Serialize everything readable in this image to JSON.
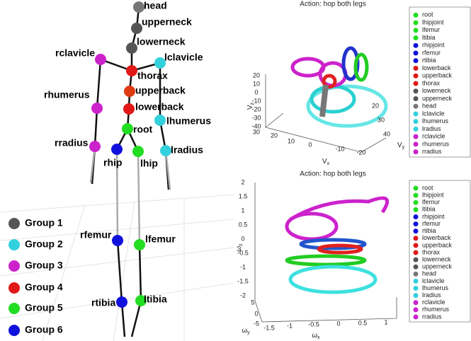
{
  "skeleton": {
    "joints": [
      "head",
      "upperneck",
      "lowerneck",
      "rclavicle",
      "lclavicle",
      "thorax",
      "upperback",
      "lowerback",
      "root",
      "rhumerus",
      "lhumerus",
      "rradius",
      "lradius",
      "rhip",
      "lhip",
      "rfemur",
      "lfemur",
      "rtibia",
      "ltibia"
    ]
  },
  "groups": [
    "Group 1",
    "Group 2",
    "Group 3",
    "Group 4",
    "Group 5",
    "Group 6"
  ],
  "plots": [
    {
      "title": "Action: hop both legs",
      "legend": [
        "root",
        "lhipjoint",
        "lfemur",
        "ltibia",
        "rhipjoint",
        "rfemur",
        "rtibia",
        "lowerback",
        "upperback",
        "thorax",
        "lowerneck",
        "upperneck",
        "head",
        "lclavicle",
        "lhumerus",
        "lradius",
        "rclavicle",
        "rhumerus",
        "rradius"
      ],
      "z_label": {
        "base": "V",
        "sub": "z"
      },
      "x_label": {
        "base": "V",
        "sub": "x"
      },
      "y_label": {
        "base": "V",
        "sub": "y"
      },
      "z_ticks": [
        "20",
        "10",
        "0",
        "-10",
        "-20",
        "-30",
        "-40"
      ],
      "x_ticks": [
        "30",
        "20",
        "10",
        "0",
        "-10",
        "-20"
      ],
      "y_ticks": [
        "20",
        "30",
        "40"
      ]
    },
    {
      "title": "Action: hop both legs",
      "legend": [
        "root",
        "lhipjoint",
        "lfemur",
        "ltibia",
        "rhipjoint",
        "rfemur",
        "rtibia",
        "lowerback",
        "upperback",
        "thorax",
        "lowerneck",
        "upperneck",
        "head",
        "lclavicle",
        "lhumerus",
        "lradius",
        "rclavicle",
        "rhumerus",
        "rradius"
      ],
      "z_label": {
        "base": "ω",
        "sub": "z"
      },
      "x_label": {
        "base": "ω",
        "sub": "x"
      },
      "y_label": {
        "base": "ω",
        "sub": "y"
      },
      "z_ticks": [
        "2",
        "1.5",
        "1",
        "0.5",
        "0",
        "-0.5",
        "-1",
        "-1.5",
        "-2"
      ],
      "x_ticks": [
        "-1.5",
        "-1",
        "-0.5",
        "0",
        "0.5",
        "1"
      ],
      "y_ticks": [
        "5",
        "0",
        "-5"
      ]
    }
  ]
}
